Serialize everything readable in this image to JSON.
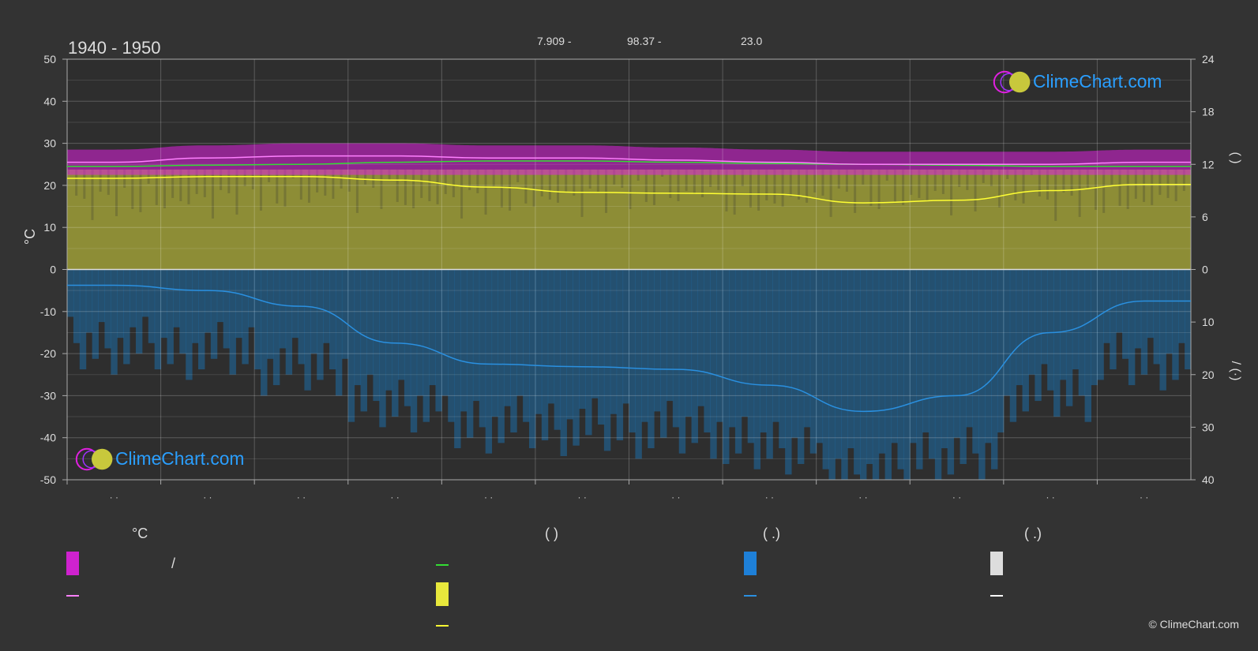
{
  "header": {
    "period": "1940 - 1950",
    "lat": "7.909 -",
    "lon": "98.37 -",
    "elevation": "23.0"
  },
  "brand": {
    "name": "ClimeChart.com",
    "copyright": "© ClimeChart.com"
  },
  "colors": {
    "background": "#333333",
    "sunshine": "#c8c83c",
    "precip": "#1e6ea8",
    "temp_band": "#e020e0",
    "temp_line": "#ff80ff",
    "mean_line": "#33dd33",
    "daylight_line": "#ffff33",
    "precip_line": "#2a90e0",
    "brand": "#2a9fff"
  },
  "axes": {
    "left_unit": "°C",
    "left_ticks": [
      "50",
      "40",
      "30",
      "20",
      "10",
      "0",
      "-10",
      "-20",
      "-30",
      "-40",
      "-50"
    ],
    "right_top_ticks": [
      "24",
      "18",
      "12",
      "6",
      "0"
    ],
    "right_bottom_ticks": [
      "10",
      "20",
      "30",
      "40"
    ],
    "right_top_label": "(    )",
    "right_bottom_label": "/   (·)",
    "month_labels": [
      "· ·",
      "· ·",
      "· ·",
      "· ·",
      "· ·",
      "· ·",
      "· ·",
      "· ·",
      "· ·",
      "· ·",
      "· ·",
      "· ·"
    ]
  },
  "legend": {
    "col1_title": "°C",
    "col1_row1": "/",
    "col2_title": "(          )",
    "col3_title": "(   .)",
    "col4_title": "(   .)"
  },
  "chart_data": {
    "type": "area",
    "xlabel": "",
    "ylabel": "°C",
    "ylim": [
      -50,
      50
    ],
    "y2_top_lim": [
      0,
      24
    ],
    "y2_bottom_lim": [
      0,
      40
    ],
    "grid": true,
    "months": 12,
    "series": [
      {
        "key": "temp_max",
        "axis": "left",
        "values": [
          25.5,
          26.5,
          27.0,
          27.0,
          26.5,
          26.5,
          26.0,
          25.5,
          25.0,
          25.0,
          25.0,
          25.5
        ]
      },
      {
        "key": "temp_min",
        "axis": "left",
        "values": [
          24.5,
          24.8,
          25.0,
          25.5,
          25.8,
          25.8,
          25.5,
          25.2,
          25.0,
          24.8,
          24.5,
          24.5
        ]
      },
      {
        "key": "daylight",
        "axis": "right_top",
        "values": [
          10.4,
          10.6,
          10.6,
          10.2,
          9.4,
          8.8,
          8.7,
          8.6,
          7.6,
          7.9,
          9.0,
          9.7
        ]
      },
      {
        "key": "precip",
        "axis": "right_bottom",
        "values": [
          3,
          4,
          7,
          14,
          18,
          18.5,
          19,
          22,
          27,
          24,
          12,
          6
        ]
      }
    ]
  }
}
